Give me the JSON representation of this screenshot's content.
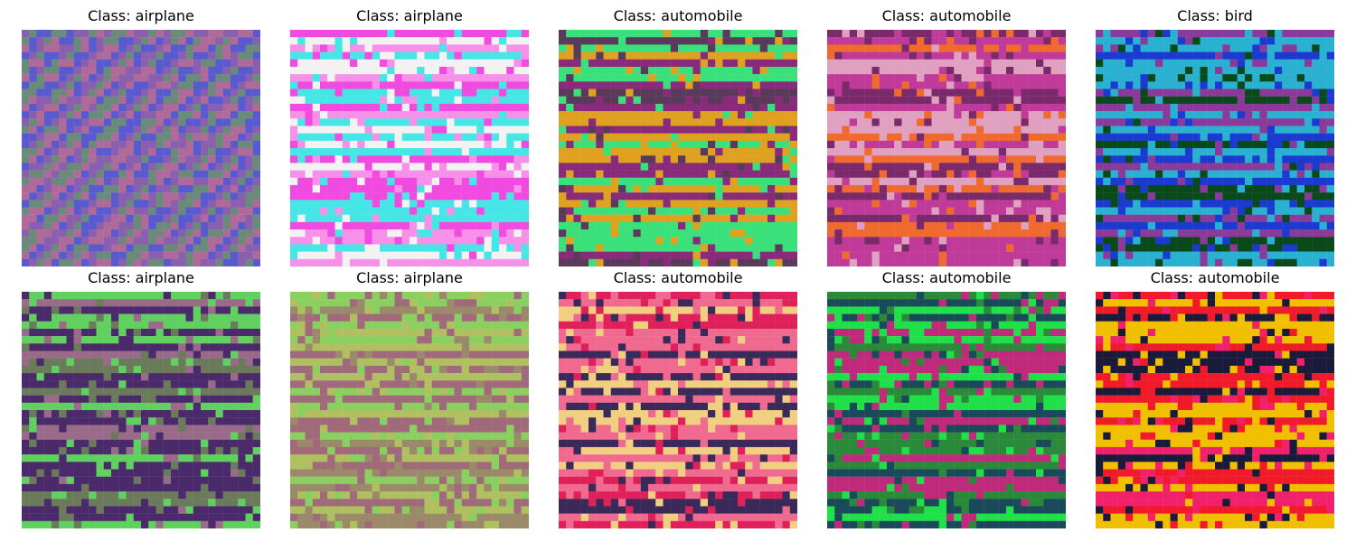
{
  "title_prefix": "Class: ",
  "panels": [
    {
      "label": "airplane",
      "style": "checker",
      "colors": [
        "#8a5fb0",
        "#6a8a7a",
        "#b06a9a",
        "#5a5ad0"
      ]
    },
    {
      "label": "airplane",
      "style": "stripes",
      "colors": [
        "#f04ae0",
        "#f2f2f2",
        "#f790e8",
        "#46e6e6"
      ]
    },
    {
      "label": "automobile",
      "style": "stripes",
      "colors": [
        "#e0a020",
        "#8a2a7a",
        "#5a3a5a",
        "#3ae07a"
      ]
    },
    {
      "label": "automobile",
      "style": "stripes",
      "colors": [
        "#f06a30",
        "#c03a9a",
        "#e0a0c0",
        "#7a2a6a"
      ]
    },
    {
      "label": "bird",
      "style": "stripes",
      "colors": [
        "#0a4a1a",
        "#1a3ad0",
        "#8a3a9a",
        "#2ab0d0"
      ]
    },
    {
      "label": "airplane",
      "style": "stripes",
      "colors": [
        "#6a7a5a",
        "#4a2a6a",
        "#60d060",
        "#9a6a8a"
      ]
    },
    {
      "label": "airplane",
      "style": "stripes",
      "colors": [
        "#9a8a6a",
        "#8ad060",
        "#a06a7a",
        "#b0c060"
      ]
    },
    {
      "label": "automobile",
      "style": "stripes",
      "colors": [
        "#f0d080",
        "#e0205a",
        "#3a2a5a",
        "#f06a90"
      ]
    },
    {
      "label": "automobile",
      "style": "stripes",
      "colors": [
        "#2a8a3a",
        "#20e04a",
        "#1a4a5a",
        "#c02a7a"
      ]
    },
    {
      "label": "automobile",
      "style": "stripes",
      "colors": [
        "#f01a2a",
        "#f0c000",
        "#f0206a",
        "#1a1a3a"
      ]
    }
  ]
}
